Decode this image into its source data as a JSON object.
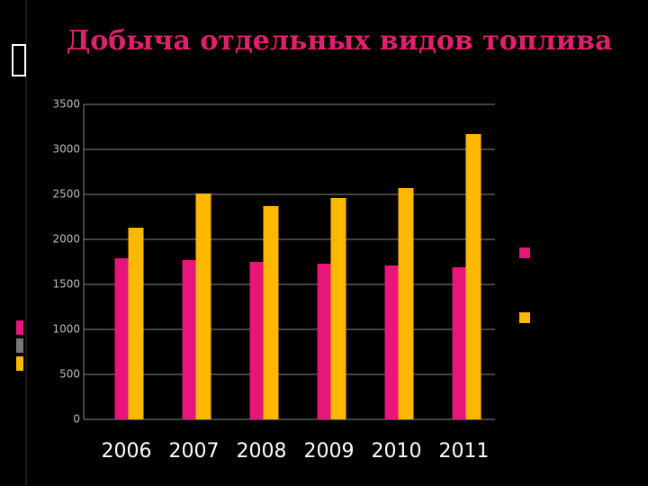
{
  "chart_data": {
    "type": "bar",
    "title": "Добыча отдельных видов топлива",
    "categories": [
      "2006",
      "2007",
      "2008",
      "2009",
      "2010",
      "2011"
    ],
    "series": [
      {
        "color": "#e8157a",
        "values": [
          1790,
          1770,
          1750,
          1730,
          1710,
          1690
        ]
      },
      {
        "color": "#ffb800",
        "values": [
          2130,
          2510,
          2370,
          2460,
          2570,
          3170
        ]
      }
    ],
    "ylim": [
      0,
      3500
    ],
    "yticks": [
      0,
      500,
      1000,
      1500,
      2000,
      2500,
      3000,
      3500
    ],
    "grid": true
  }
}
